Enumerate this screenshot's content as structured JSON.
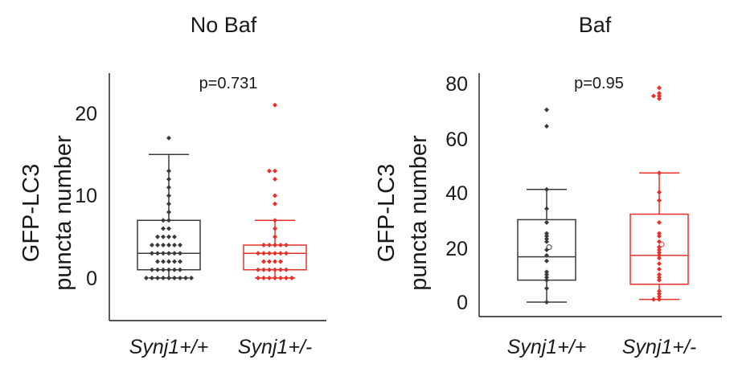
{
  "figure": {
    "panels": [
      {
        "title": "No Baf",
        "ylabel_line1": "GFP-LC3",
        "ylabel_line2": "puncta number",
        "pvalue": "p=0.731",
        "yticks": [
          "0",
          "10",
          "20"
        ]
      },
      {
        "title": "Baf",
        "ylabel_line1": "GFP-LC3",
        "ylabel_line2": "puncta number",
        "pvalue": "p=0.95",
        "yticks": [
          "0",
          "20",
          "40",
          "60",
          "80"
        ]
      }
    ]
  },
  "chart_data": [
    {
      "type": "box",
      "title": "No Baf",
      "ylabel": "GFP-LC3 puncta number",
      "ylim": [
        -5,
        25
      ],
      "yticks": [
        0,
        10,
        20
      ],
      "annotation": "p=0.731",
      "grid": false,
      "groups": [
        {
          "name": "Synj1+/+",
          "color": "#3a3a3a",
          "box": {
            "min": 0,
            "q1": 1,
            "median": 3,
            "q3": 7,
            "max": 15
          },
          "points": [
            17,
            13,
            12,
            11,
            10,
            9,
            8,
            7,
            7,
            6,
            6,
            5,
            5,
            5,
            5,
            4,
            4,
            4,
            4,
            4,
            4,
            3,
            3,
            3,
            3,
            3,
            3,
            2,
            2,
            2,
            2,
            2,
            1,
            1,
            1,
            1,
            1,
            1,
            0,
            0,
            0,
            0,
            0,
            0,
            0,
            0,
            0
          ]
        },
        {
          "name": "Synj1+/-",
          "color": "#e8302a",
          "box": {
            "min": 0,
            "q1": 1,
            "median": 3,
            "q3": 4,
            "max": 7
          },
          "points": [
            21,
            13,
            13,
            12,
            10,
            9,
            7,
            6,
            5,
            4,
            4,
            4,
            4,
            4,
            3,
            3,
            3,
            3,
            3,
            3,
            2,
            2,
            2,
            2,
            1,
            1,
            1,
            1,
            1,
            1,
            0,
            0,
            0,
            0,
            0,
            0,
            0
          ]
        }
      ]
    },
    {
      "type": "box",
      "title": "Baf",
      "ylabel": "GFP-LC3 puncta number",
      "ylim": [
        -5,
        85
      ],
      "yticks": [
        0,
        20,
        40,
        60,
        80
      ],
      "annotation": "p=0.95",
      "grid": false,
      "groups": [
        {
          "name": "Synj1+/+",
          "color": "#3a3a3a",
          "box": {
            "min": 0,
            "q1": 8,
            "median": 16.5,
            "q3": 30,
            "max": 41
          },
          "points": [
            70,
            64,
            41,
            34,
            29,
            25,
            24,
            23,
            22,
            19,
            17,
            15,
            11,
            10,
            9,
            8,
            5,
            0
          ],
          "mean": 20
        },
        {
          "name": "Synj1+/-",
          "color": "#e8302a",
          "box": {
            "min": 1,
            "q1": 6.5,
            "median": 17,
            "q3": 32,
            "max": 47
          },
          "points": [
            78,
            76,
            75,
            75,
            74,
            47,
            40,
            37,
            29,
            25,
            24,
            22,
            20,
            19,
            18,
            17,
            16,
            14,
            12,
            10,
            9,
            8,
            4,
            3,
            2,
            1,
            1
          ],
          "mean": 21
        }
      ]
    }
  ]
}
